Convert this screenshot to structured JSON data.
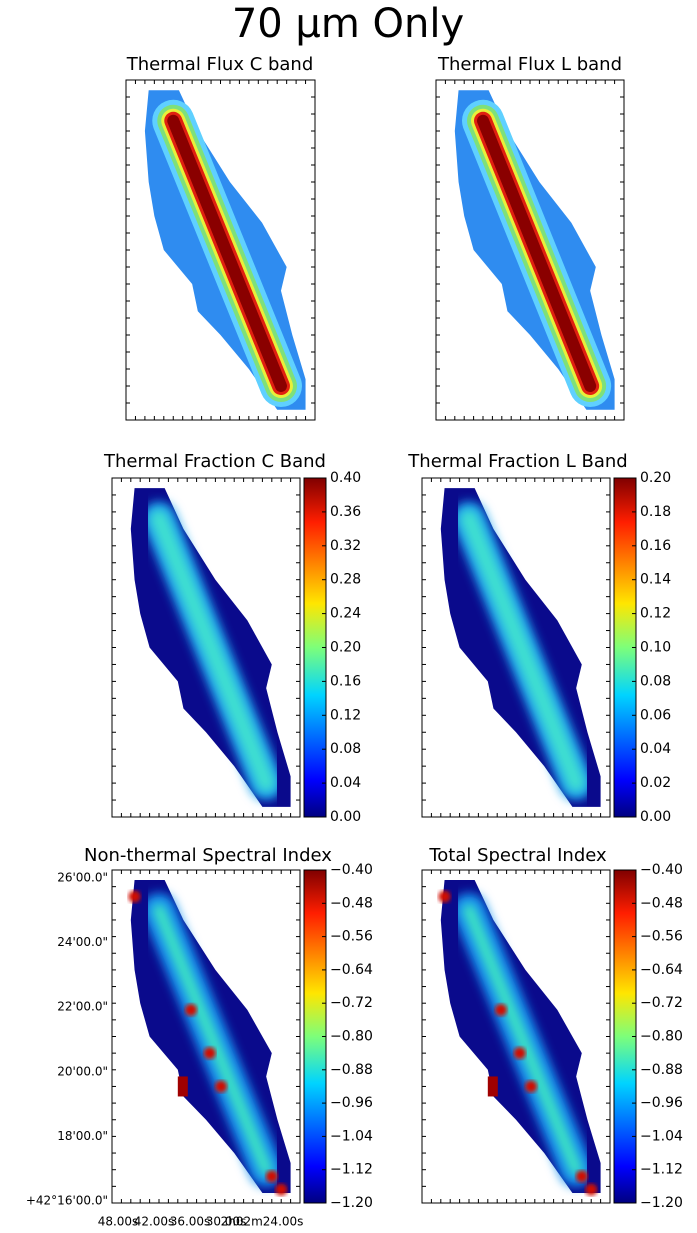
{
  "title": "70 μm Only",
  "panels": [
    {
      "title": "Thermal Flux C band"
    },
    {
      "title": "Thermal Flux L band"
    },
    {
      "title": "Thermal Fraction C Band",
      "colorbar": {
        "lim": [
          0,
          0.4
        ],
        "ticks": [
          {
            "value": 0,
            "label": "0.00"
          },
          {
            "value": 0.04,
            "label": "0.04"
          },
          {
            "value": 0.08,
            "label": "0.08"
          },
          {
            "value": 0.12,
            "label": "0.12"
          },
          {
            "value": 0.16,
            "label": "0.16"
          },
          {
            "value": 0.2,
            "label": "0.20"
          },
          {
            "value": 0.24,
            "label": "0.24"
          },
          {
            "value": 0.28,
            "label": "0.28"
          },
          {
            "value": 0.32,
            "label": "0.32"
          },
          {
            "value": 0.36,
            "label": "0.36"
          },
          {
            "value": 0.4,
            "label": "0.40"
          }
        ]
      }
    },
    {
      "title": "Thermal Fraction L Band",
      "colorbar": {
        "lim": [
          0,
          0.2
        ],
        "ticks": [
          {
            "value": 0,
            "label": "0.00"
          },
          {
            "value": 0.02,
            "label": "0.02"
          },
          {
            "value": 0.04,
            "label": "0.04"
          },
          {
            "value": 0.06,
            "label": "0.06"
          },
          {
            "value": 0.08,
            "label": "0.08"
          },
          {
            "value": 0.1,
            "label": "0.10"
          },
          {
            "value": 0.12,
            "label": "0.12"
          },
          {
            "value": 0.14,
            "label": "0.14"
          },
          {
            "value": 0.16,
            "label": "0.16"
          },
          {
            "value": 0.18,
            "label": "0.18"
          },
          {
            "value": 0.2,
            "label": "0.20"
          }
        ]
      }
    },
    {
      "title": "Non-thermal Spectral Index",
      "colorbar": {
        "lim": [
          -1.2,
          -0.4
        ],
        "ticks": [
          {
            "value": -1.2,
            "label": "−1.20"
          },
          {
            "value": -1.12,
            "label": "−1.12"
          },
          {
            "value": -1.04,
            "label": "−1.04"
          },
          {
            "value": -0.96,
            "label": "−0.96"
          },
          {
            "value": -0.88,
            "label": "−0.88"
          },
          {
            "value": -0.8,
            "label": "−0.80"
          },
          {
            "value": -0.72,
            "label": "−0.72"
          },
          {
            "value": -0.64,
            "label": "−0.64"
          },
          {
            "value": -0.56,
            "label": "−0.56"
          },
          {
            "value": -0.48,
            "label": "−0.48"
          },
          {
            "value": -0.4,
            "label": "−0.40"
          }
        ]
      },
      "yticks": [
        "26'00.0\"",
        "24'00.0\"",
        "22'00.0\"",
        "20'00.0\"",
        "18'00.0\"",
        "+42°16'00.0\""
      ],
      "xticks": [
        "48.00s",
        "42.00s",
        "36.00s",
        "30.00s",
        "2h02m24.00s"
      ]
    },
    {
      "title": "Total Spectral Index",
      "colorbar": {
        "lim": [
          -1.2,
          -0.4
        ],
        "ticks": [
          {
            "value": -1.2,
            "label": "−1.20"
          },
          {
            "value": -1.12,
            "label": "−1.12"
          },
          {
            "value": -1.04,
            "label": "−1.04"
          },
          {
            "value": -0.96,
            "label": "−0.96"
          },
          {
            "value": -0.88,
            "label": "−0.88"
          },
          {
            "value": -0.8,
            "label": "−0.80"
          },
          {
            "value": -0.72,
            "label": "−0.72"
          },
          {
            "value": -0.64,
            "label": "−0.64"
          },
          {
            "value": -0.56,
            "label": "−0.56"
          },
          {
            "value": -0.48,
            "label": "−0.48"
          },
          {
            "value": -0.4,
            "label": "−0.40"
          }
        ]
      }
    }
  ]
}
